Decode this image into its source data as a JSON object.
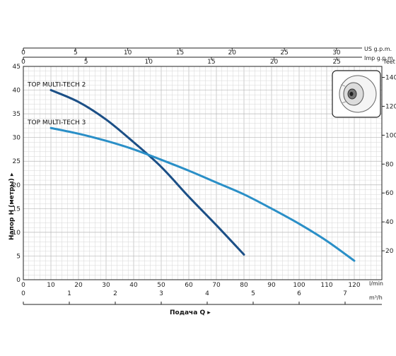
{
  "chart_data": {
    "type": "line",
    "y_axis_label": "Напор H (метры) ▸",
    "x_axis_label": "Подача Q ▸",
    "x_lpm": {
      "unit": "l/min",
      "range": [
        0,
        130
      ],
      "ticks": [
        0,
        10,
        20,
        30,
        40,
        50,
        60,
        70,
        80,
        90,
        100,
        110,
        120
      ]
    },
    "x_m3h": {
      "unit": "m³/h",
      "range": [
        0,
        7.8
      ],
      "ticks": [
        0,
        1,
        2,
        3,
        4,
        5,
        6,
        7
      ]
    },
    "x_us_gpm": {
      "unit": "US g.p.m.",
      "range": [
        0,
        34.34
      ],
      "ticks": [
        0,
        5,
        10,
        15,
        20,
        25,
        30
      ]
    },
    "x_imp_gpm": {
      "unit": "Imp g.p.m.",
      "range": [
        0,
        28.6
      ],
      "ticks": [
        0,
        5,
        10,
        15,
        20,
        25
      ]
    },
    "y_m": {
      "range": [
        0,
        45
      ],
      "ticks": [
        0,
        5,
        10,
        15,
        20,
        25,
        30,
        35,
        40,
        45
      ]
    },
    "y_feet": {
      "unit": "feet",
      "range": [
        0,
        147.6
      ],
      "ticks": [
        20,
        40,
        60,
        80,
        100,
        120,
        140
      ]
    },
    "grid": true,
    "series": [
      {
        "name": "TOP MULTI-TECH 2",
        "color": "#1b4f86",
        "x": [
          10,
          20,
          30,
          40,
          50,
          60,
          70,
          80
        ],
        "y": [
          40,
          37.5,
          33.8,
          29,
          23.8,
          17.5,
          11.5,
          5.3
        ]
      },
      {
        "name": "TOP MULTI-TECH 3",
        "color": "#2a8fc7",
        "x": [
          10,
          20,
          30,
          40,
          50,
          60,
          70,
          80,
          90,
          100,
          110,
          120
        ],
        "y": [
          32,
          30.8,
          29.3,
          27.5,
          25.3,
          23,
          20.5,
          18,
          15,
          11.8,
          8.2,
          4
        ]
      }
    ]
  },
  "legend": {
    "icon": "pump-impeller-icon"
  }
}
